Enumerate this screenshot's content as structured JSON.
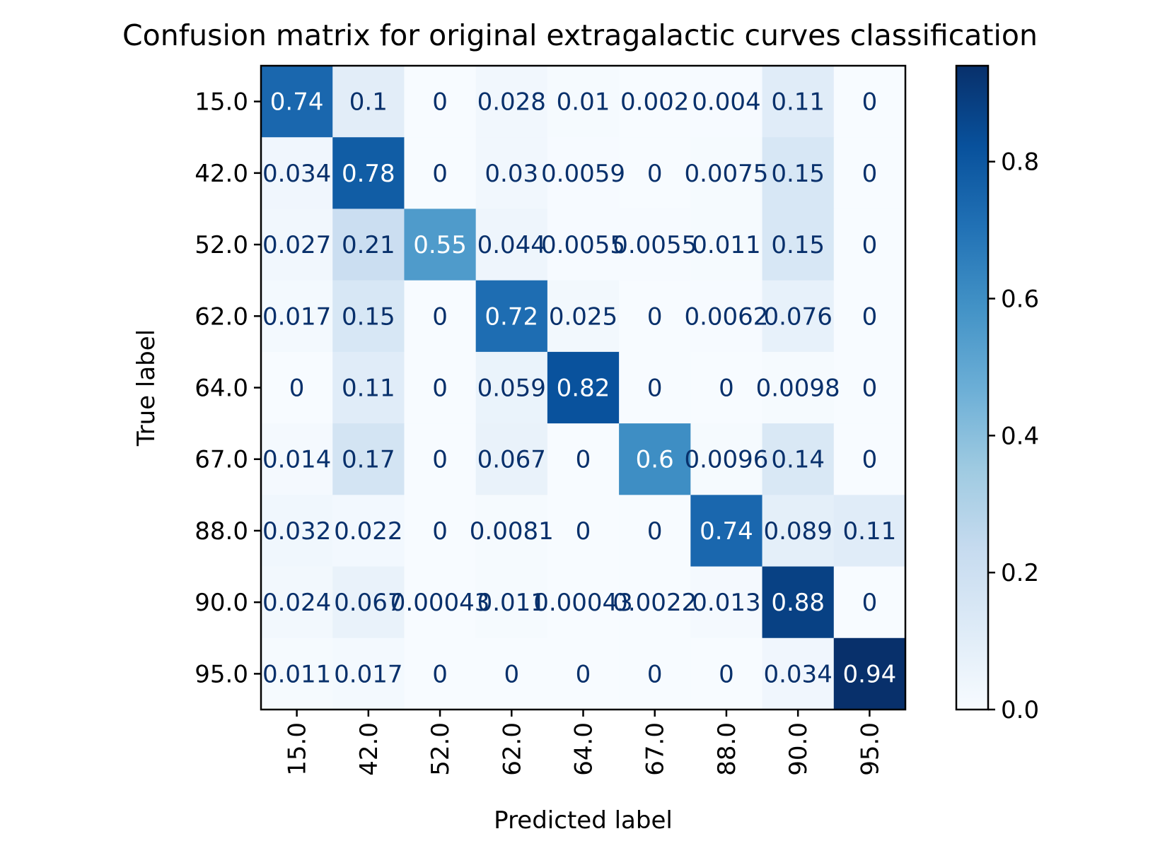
{
  "chart_data": {
    "type": "heatmap",
    "title": "Confusion matrix for original extragalactic curves classification",
    "xlabel": "Predicted label",
    "ylabel": "True label",
    "x_categories": [
      "15.0",
      "42.0",
      "52.0",
      "62.0",
      "64.0",
      "67.0",
      "88.0",
      "90.0",
      "95.0"
    ],
    "y_categories": [
      "15.0",
      "42.0",
      "52.0",
      "62.0",
      "64.0",
      "67.0",
      "88.0",
      "90.0",
      "95.0"
    ],
    "values": [
      [
        0.74,
        0.1,
        0,
        0.028,
        0.01,
        0.002,
        0.004,
        0.11,
        0
      ],
      [
        0.034,
        0.78,
        0,
        0.03,
        0.0059,
        0,
        0.0075,
        0.15,
        0
      ],
      [
        0.027,
        0.21,
        0.55,
        0.044,
        0.0055,
        0.0055,
        0.011,
        0.15,
        0
      ],
      [
        0.017,
        0.15,
        0,
        0.72,
        0.025,
        0,
        0.0062,
        0.076,
        0
      ],
      [
        0,
        0.11,
        0,
        0.059,
        0.82,
        0,
        0,
        0.0098,
        0
      ],
      [
        0.014,
        0.17,
        0,
        0.067,
        0,
        0.6,
        0.0096,
        0.14,
        0
      ],
      [
        0.032,
        0.022,
        0,
        0.0081,
        0,
        0,
        0.74,
        0.089,
        0.11
      ],
      [
        0.024,
        0.067,
        0.00043,
        0.011,
        0.00043,
        0.0022,
        0.013,
        0.88,
        0
      ],
      [
        0.011,
        0.017,
        0,
        0,
        0,
        0,
        0,
        0.034,
        0.94
      ]
    ],
    "cell_labels": [
      [
        "0.74",
        "0.1",
        "0",
        "0.028",
        "0.01",
        "0.002",
        "0.004",
        "0.11",
        "0"
      ],
      [
        "0.034",
        "0.78",
        "0",
        "0.03",
        "0.0059",
        "0",
        "0.0075",
        "0.15",
        "0"
      ],
      [
        "0.027",
        "0.21",
        "0.55",
        "0.044",
        "0.0055",
        "0.0055",
        "0.011",
        "0.15",
        "0"
      ],
      [
        "0.017",
        "0.15",
        "0",
        "0.72",
        "0.025",
        "0",
        "0.0062",
        "0.076",
        "0"
      ],
      [
        "0",
        "0.11",
        "0",
        "0.059",
        "0.82",
        "0",
        "0",
        "0.0098",
        "0"
      ],
      [
        "0.014",
        "0.17",
        "0",
        "0.067",
        "0",
        "0.6",
        "0.0096",
        "0.14",
        "0"
      ],
      [
        "0.032",
        "0.022",
        "0",
        "0.0081",
        "0",
        "0",
        "0.74",
        "0.089",
        "0.11"
      ],
      [
        "0.024",
        "0.067",
        "0.00043",
        "0.011",
        "0.00043",
        "0.0022",
        "0.013",
        "0.88",
        "0"
      ],
      [
        "0.011",
        "0.017",
        "0",
        "0",
        "0",
        "0",
        "0",
        "0.034",
        "0.94"
      ]
    ],
    "colormap": "Blues",
    "colorbar": {
      "range": [
        0,
        0.94
      ],
      "ticks": [
        0.0,
        0.2,
        0.4,
        0.6,
        0.8
      ],
      "tick_labels": [
        "0.0",
        "0.2",
        "0.4",
        "0.6",
        "0.8"
      ]
    },
    "grid": false
  }
}
